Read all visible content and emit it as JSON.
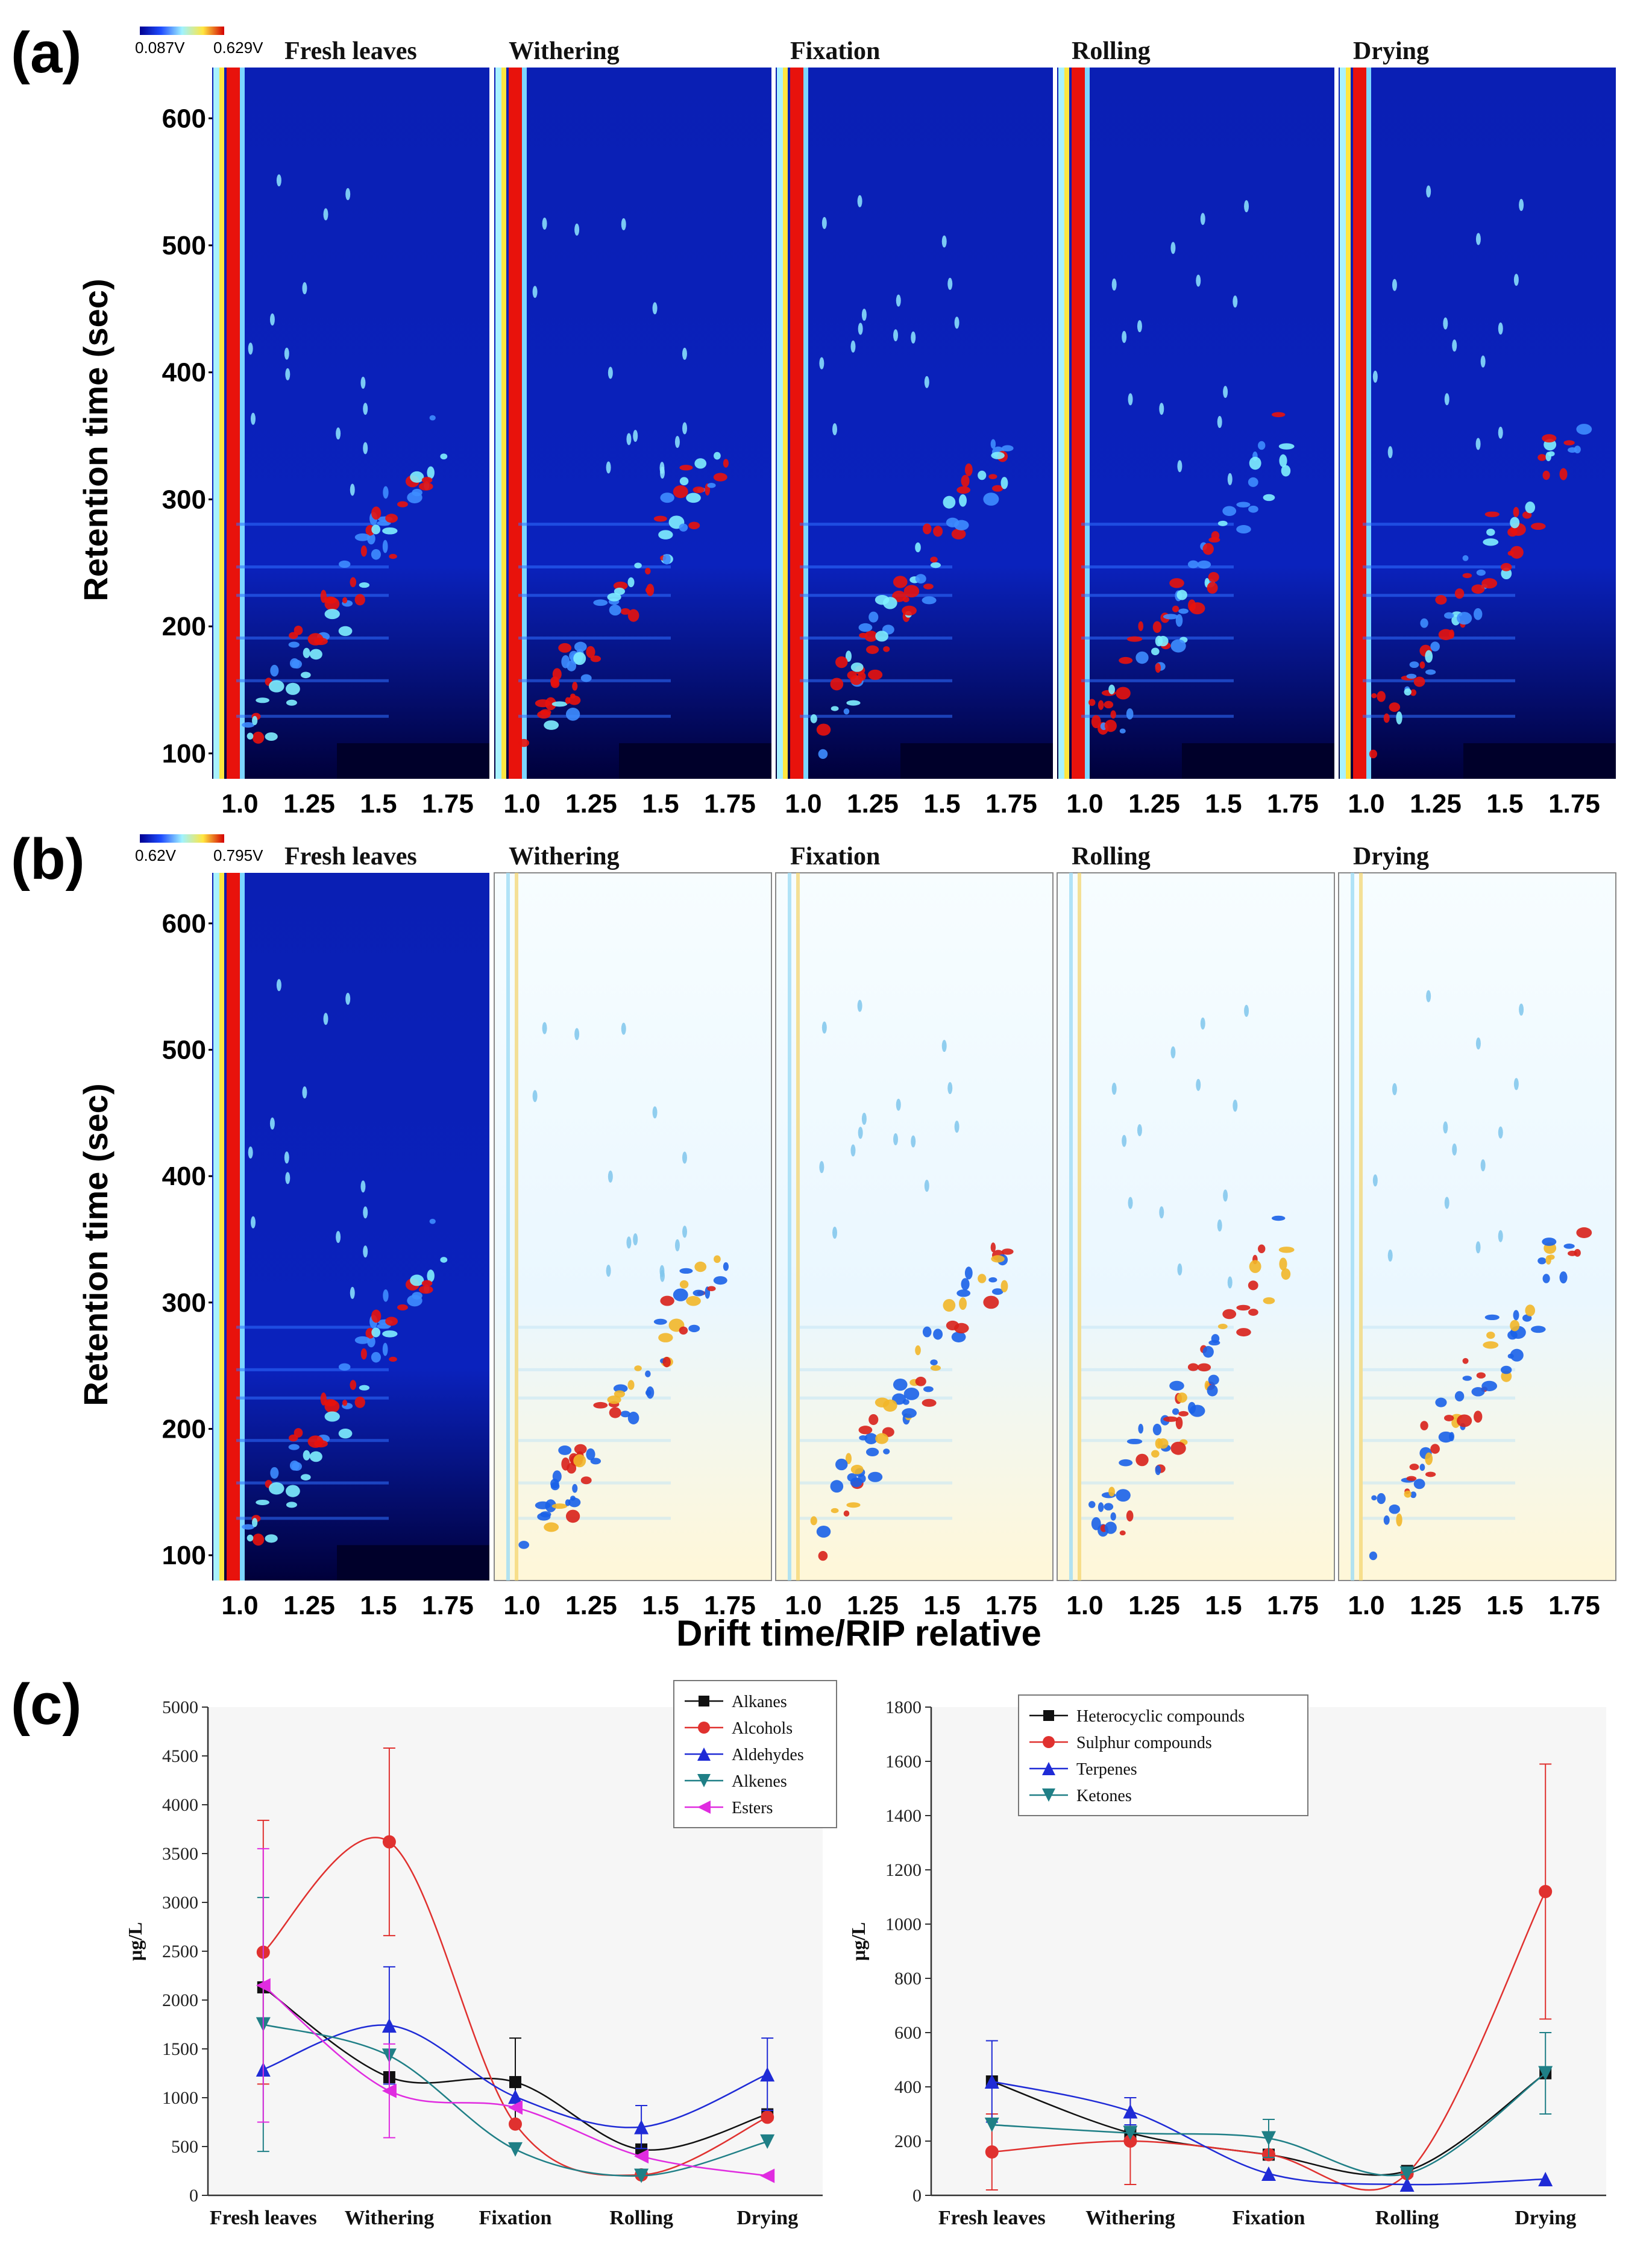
{
  "panels": {
    "a": {
      "letter": "(a)",
      "ylabel": "Retention time (sec)",
      "colorbar": {
        "min": "0.087V",
        "max": "0.629V"
      },
      "stages": [
        "Fresh leaves",
        "Withering",
        "Fixation",
        "Rolling",
        "Drying"
      ],
      "yticks": [
        "100",
        "200",
        "300",
        "400",
        "500",
        "600"
      ],
      "xticks": [
        "1.0",
        "1.25",
        "1.5",
        "1.75"
      ]
    },
    "b": {
      "letter": "(b)",
      "ylabel": "Retention time (sec)",
      "colorbar": {
        "min": "0.62V",
        "max": "0.795V"
      },
      "stages": [
        "Fresh leaves",
        "Withering",
        "Fixation",
        "Rolling",
        "Drying"
      ],
      "yticks": [
        "100",
        "200",
        "300",
        "400",
        "500",
        "600"
      ],
      "xticks": [
        "1.0",
        "1.25",
        "1.5",
        "1.75"
      ],
      "xlabel": "Drift time/RIP relative"
    },
    "c": {
      "letter": "(c)"
    }
  },
  "colors": {
    "heat_background": "#0a1fb4",
    "heat_red": "#e8120c",
    "diff_background": "#f4fbff",
    "black": "#111111",
    "red": "#e0312f",
    "green": "#5dd35d",
    "blue": "#1f2bd6",
    "teal": "#1f7f86",
    "magenta": "#e02ce0"
  },
  "chart_data": [
    {
      "type": "line",
      "categories": [
        "Fresh leaves",
        "Withering",
        "Fixation",
        "Rolling",
        "Drying"
      ],
      "ylabel": "μg/L",
      "ylim": [
        0,
        5000
      ],
      "yticks": [
        "0",
        "500",
        "1000",
        "1500",
        "2000",
        "2500",
        "3000",
        "3500",
        "4000",
        "4500",
        "5000"
      ],
      "legend_position": "top-right",
      "series": [
        {
          "name": "Alkanes",
          "color": "#111111",
          "marker": "square",
          "values": [
            2130,
            1210,
            1160,
            470,
            830
          ],
          "errors": [
            0,
            0,
            450,
            0,
            0
          ]
        },
        {
          "name": "Alcohols",
          "color": "#e0312f",
          "marker": "circle",
          "values": [
            2490,
            3620,
            730,
            210,
            800
          ],
          "errors": [
            1350,
            960,
            0,
            0,
            0
          ]
        },
        {
          "name": "Aldehydes",
          "color": "#1f2bd6",
          "marker": "triangle-up",
          "values": [
            1290,
            1740,
            1010,
            700,
            1240
          ],
          "errors": [
            0,
            600,
            0,
            220,
            370
          ]
        },
        {
          "name": "Alkenes",
          "color": "#1f7f86",
          "marker": "triangle-down",
          "values": [
            1750,
            1430,
            470,
            200,
            550
          ],
          "errors": [
            1300,
            0,
            0,
            0,
            0
          ]
        },
        {
          "name": "Esters",
          "color": "#e02ce0",
          "marker": "triangle-left",
          "values": [
            2150,
            1070,
            900,
            400,
            200
          ],
          "errors": [
            1400,
            480,
            0,
            0,
            0
          ]
        }
      ]
    },
    {
      "type": "line",
      "categories": [
        "Fresh leaves",
        "Withering",
        "Fixation",
        "Rolling",
        "Drying"
      ],
      "ylabel": "μg/L",
      "ylim": [
        0,
        1800
      ],
      "yticks": [
        "0",
        "200",
        "400",
        "600",
        "800",
        "1000",
        "1200",
        "1400",
        "1600",
        "1800"
      ],
      "legend_position": "top-left",
      "series": [
        {
          "name": "Heterocyclic compounds",
          "color": "#111111",
          "marker": "square",
          "values": [
            420,
            230,
            150,
            90,
            450
          ],
          "errors": [
            0,
            0,
            0,
            0,
            0
          ]
        },
        {
          "name": "Sulphur compounds",
          "color": "#e0312f",
          "marker": "circle",
          "values": [
            160,
            200,
            150,
            80,
            1120
          ],
          "errors": [
            140,
            160,
            0,
            0,
            470
          ]
        },
        {
          "name": "Terpenes",
          "color": "#1f2bd6",
          "marker": "triangle-up",
          "values": [
            420,
            310,
            80,
            40,
            60
          ],
          "errors": [
            150,
            50,
            0,
            0,
            0
          ]
        },
        {
          "name": "Ketones",
          "color": "#1f7f86",
          "marker": "triangle-down",
          "values": [
            260,
            230,
            210,
            80,
            450
          ],
          "errors": [
            0,
            0,
            70,
            0,
            150
          ]
        }
      ]
    }
  ]
}
